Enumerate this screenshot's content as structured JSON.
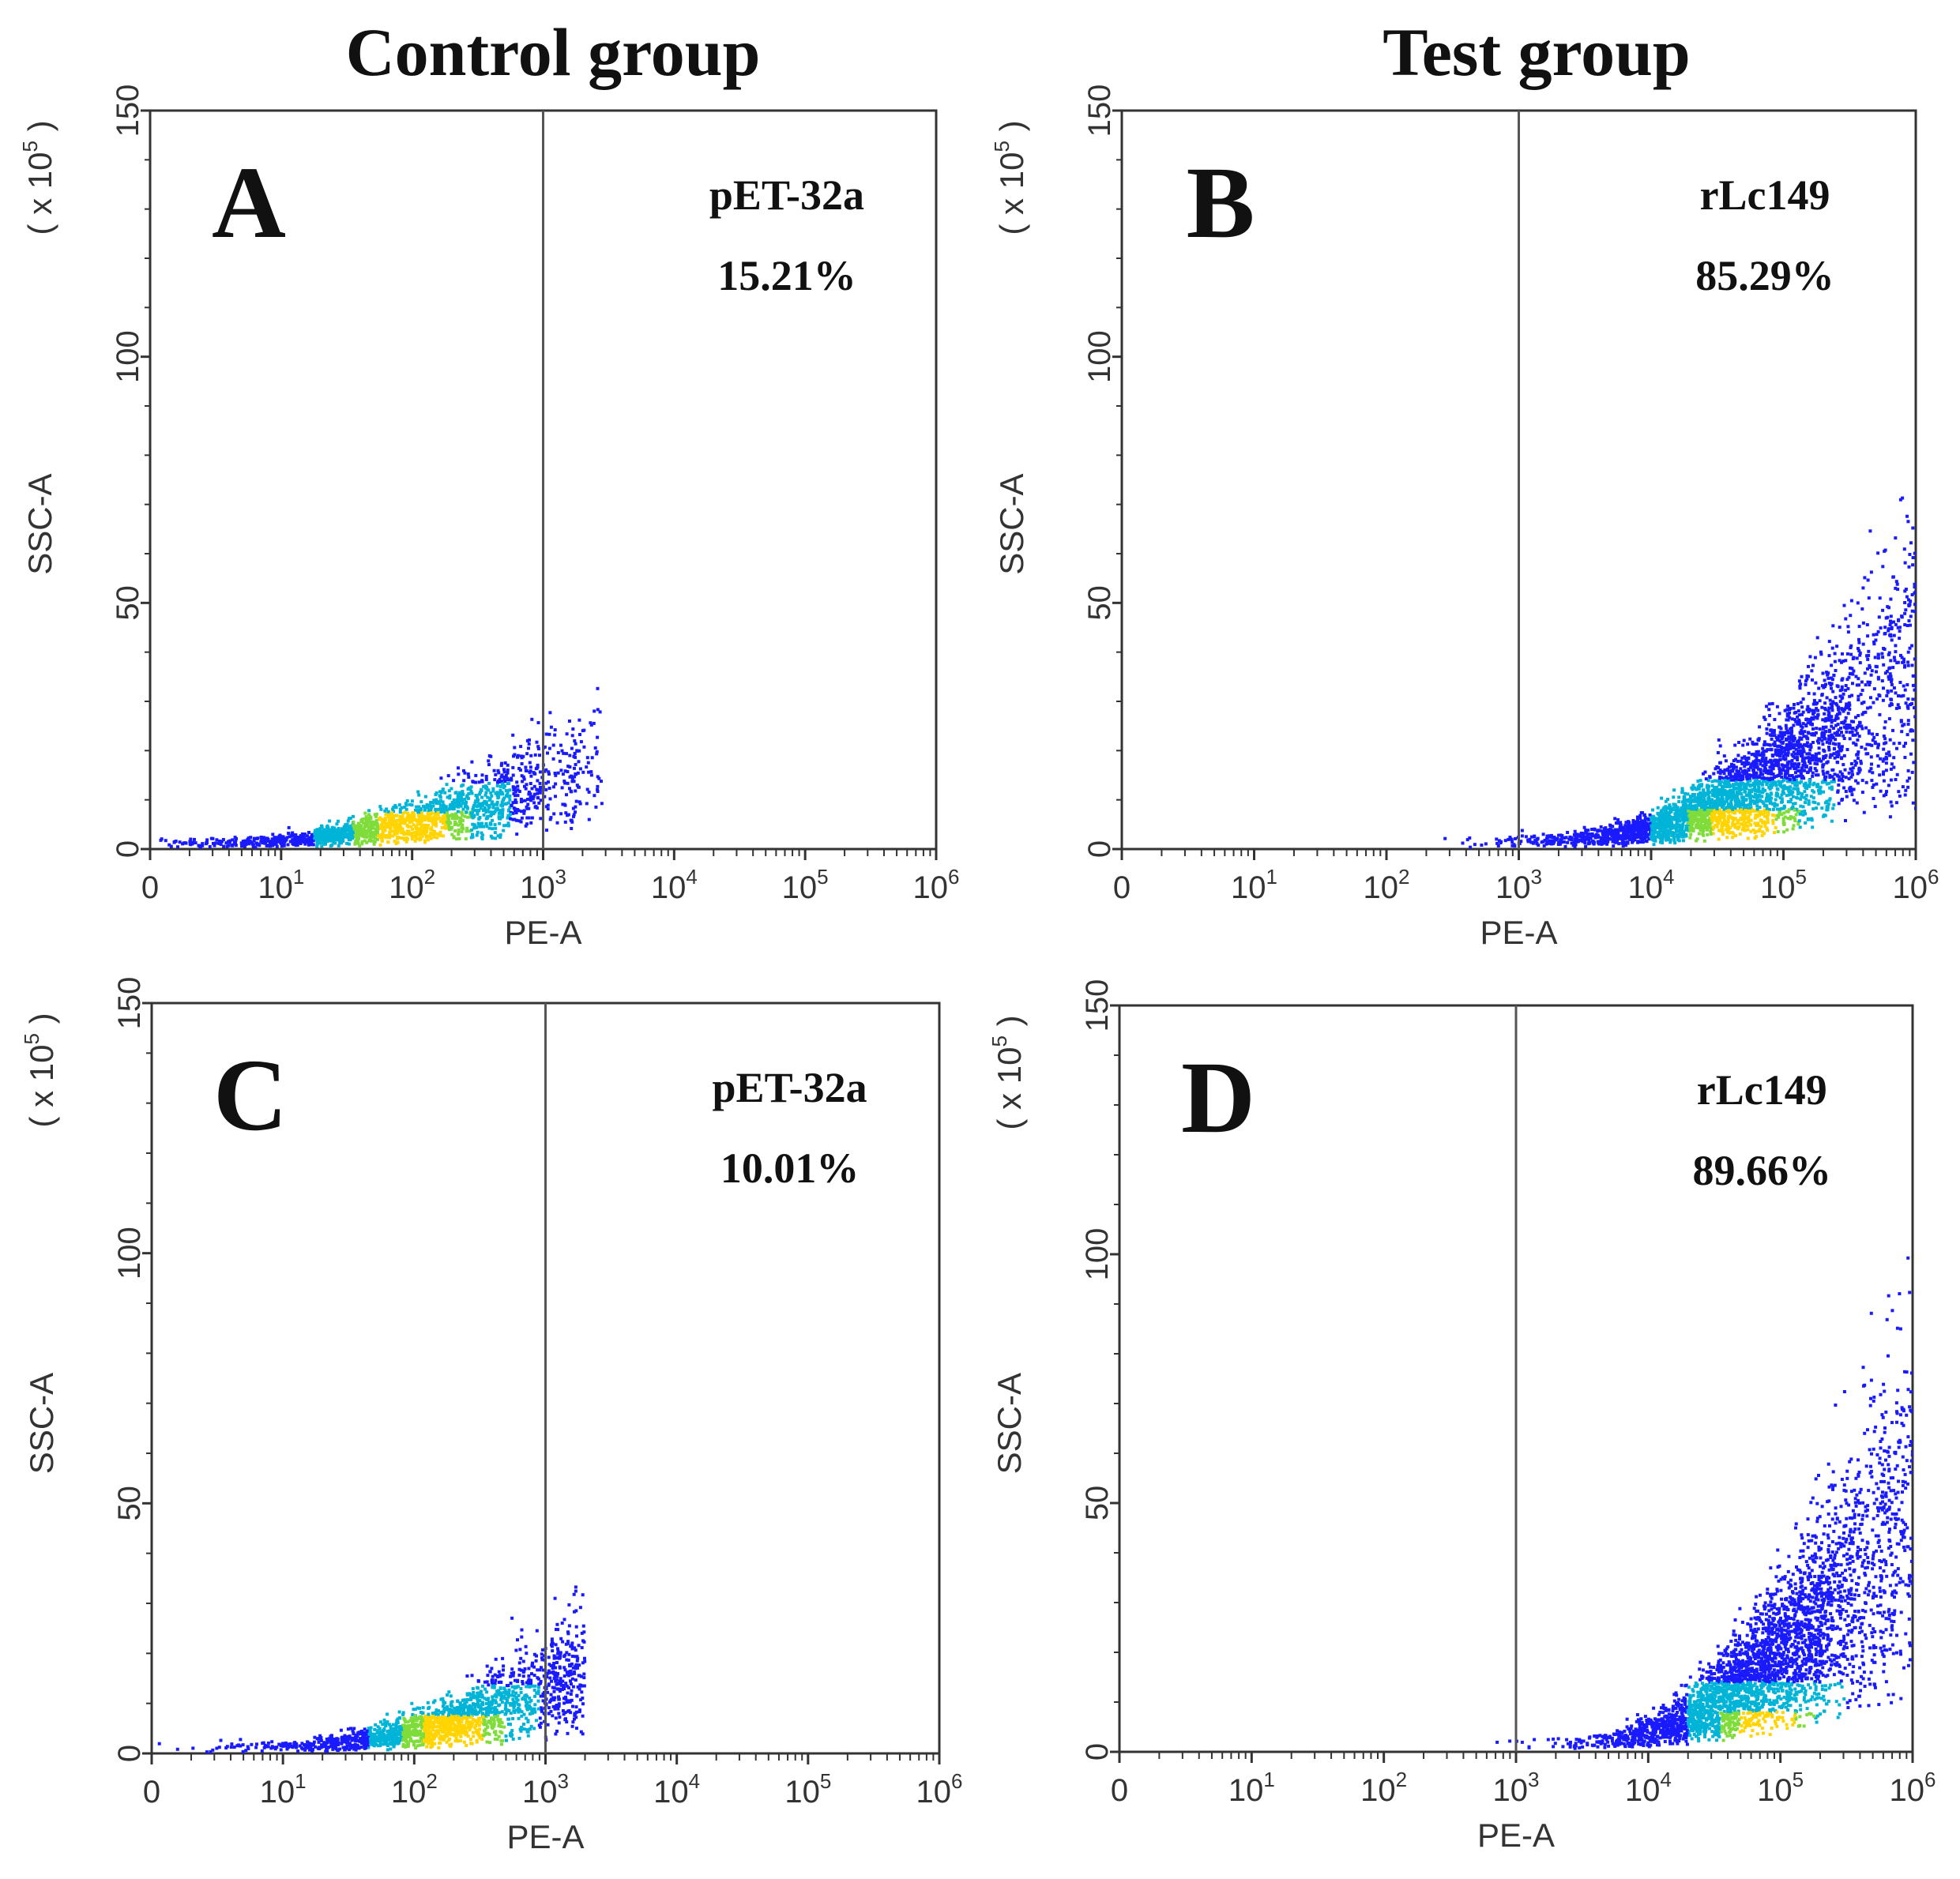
{
  "figure": {
    "group_titles": {
      "control": "Control group",
      "test": "Test group"
    }
  },
  "colors": {
    "frame": "#333333",
    "gate": "#555555",
    "dots_low": "#1a1aff",
    "dots_mid": "#00b4d8",
    "dots_high": "#7fdc3a",
    "dots_peak": "#ffd400"
  },
  "chart_data": [
    {
      "type": "scatter",
      "panel": "A",
      "sample": "pET-32a",
      "percent": "15.21%",
      "xlabel": "PE-A",
      "ylabel": "SSC-A",
      "yunit": "( x 10",
      "yunit_exp": "5",
      "yunit_close": ")",
      "xscale": "log",
      "xlim_decades": [
        0,
        6
      ],
      "ylim": [
        0,
        150
      ],
      "yticks": [
        "0",
        "50",
        "100",
        "150"
      ],
      "xticks": [
        {
          "base": "0",
          "exp": ""
        },
        {
          "base": "10",
          "exp": "1"
        },
        {
          "base": "10",
          "exp": "2"
        },
        {
          "base": "10",
          "exp": "3"
        },
        {
          "base": "10",
          "exp": "4"
        },
        {
          "base": "10",
          "exp": "5"
        },
        {
          "base": "10",
          "exp": "6"
        }
      ],
      "gate_x_decade": 3,
      "population": {
        "center_decade": 2.0,
        "spread_decade": 0.75,
        "max_decade": 3.45,
        "y_base": 1.5,
        "y_growth": 6.0,
        "count": 1800
      }
    },
    {
      "type": "scatter",
      "panel": "B",
      "sample": "rLc149",
      "percent": "85.29%",
      "xlabel": "PE-A",
      "ylabel": "SSC-A",
      "yunit": "( x 10",
      "yunit_exp": "5",
      "yunit_close": ")",
      "xscale": "log",
      "xlim_decades": [
        0,
        6
      ],
      "ylim": [
        0,
        150
      ],
      "yticks": [
        "0",
        "50",
        "100",
        "150"
      ],
      "xticks": [
        {
          "base": "0",
          "exp": ""
        },
        {
          "base": "10",
          "exp": "1"
        },
        {
          "base": "10",
          "exp": "2"
        },
        {
          "base": "10",
          "exp": "3"
        },
        {
          "base": "10",
          "exp": "4"
        },
        {
          "base": "10",
          "exp": "5"
        },
        {
          "base": "10",
          "exp": "6"
        }
      ],
      "gate_x_decade": 3,
      "population": {
        "center_decade": 4.7,
        "spread_decade": 0.7,
        "max_decade": 6.0,
        "y_base": 2.0,
        "y_growth": 14.0,
        "count": 3400
      }
    },
    {
      "type": "scatter",
      "panel": "C",
      "sample": "pET-32a",
      "percent": "10.01%",
      "xlabel": "PE-A",
      "ylabel": "SSC-A",
      "yunit": "( x 10",
      "yunit_exp": "5",
      "yunit_close": ")",
      "xscale": "log",
      "xlim_decades": [
        0,
        6
      ],
      "ylim": [
        0,
        150
      ],
      "yticks": [
        "0",
        "50",
        "100",
        "150"
      ],
      "xticks": [
        {
          "base": "0",
          "exp": ""
        },
        {
          "base": "10",
          "exp": "1"
        },
        {
          "base": "10",
          "exp": "2"
        },
        {
          "base": "10",
          "exp": "3"
        },
        {
          "base": "10",
          "exp": "4"
        },
        {
          "base": "10",
          "exp": "5"
        },
        {
          "base": "10",
          "exp": "6"
        }
      ],
      "gate_x_decade": 3,
      "population": {
        "center_decade": 2.3,
        "spread_decade": 0.65,
        "max_decade": 3.3,
        "y_base": 1.5,
        "y_growth": 7.5,
        "count": 1900
      }
    },
    {
      "type": "scatter",
      "panel": "D",
      "sample": "rLc149",
      "percent": "89.66%",
      "xlabel": "PE-A",
      "ylabel": "SSC-A",
      "yunit": "( x 10",
      "yunit_exp": "5",
      "yunit_close": ")",
      "xscale": "log",
      "xlim_decades": [
        0,
        6
      ],
      "ylim": [
        0,
        150
      ],
      "yticks": [
        "0",
        "50",
        "100",
        "150"
      ],
      "xticks": [
        {
          "base": "0",
          "exp": ""
        },
        {
          "base": "10",
          "exp": "1"
        },
        {
          "base": "10",
          "exp": "2"
        },
        {
          "base": "10",
          "exp": "3"
        },
        {
          "base": "10",
          "exp": "4"
        },
        {
          "base": "10",
          "exp": "5"
        },
        {
          "base": "10",
          "exp": "6"
        }
      ],
      "gate_x_decade": 3,
      "population": {
        "center_decade": 4.9,
        "spread_decade": 0.6,
        "max_decade": 6.0,
        "y_base": 2.0,
        "y_growth": 22.0,
        "count": 3400
      }
    }
  ]
}
